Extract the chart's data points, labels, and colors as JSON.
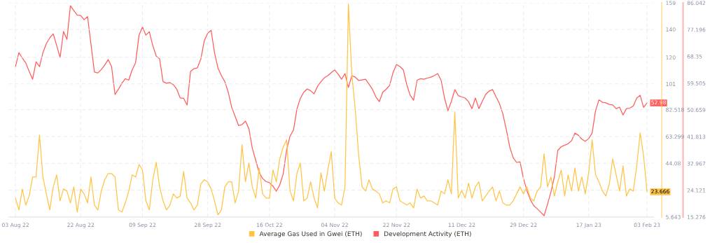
{
  "chart_data": {
    "type": "line",
    "x": [
      "2022-08-03",
      "2022-08-04",
      "2022-08-05",
      "2022-08-06",
      "2022-08-07",
      "2022-08-08",
      "2022-08-09",
      "2022-08-10",
      "2022-08-11",
      "2022-08-12",
      "2022-08-13",
      "2022-08-14",
      "2022-08-15",
      "2022-08-16",
      "2022-08-17",
      "2022-08-18",
      "2022-08-19",
      "2022-08-20",
      "2022-08-21",
      "2022-08-22",
      "2022-08-23",
      "2022-08-24",
      "2022-08-25",
      "2022-08-26",
      "2022-08-27",
      "2022-08-28",
      "2022-08-29",
      "2022-08-30",
      "2022-08-31",
      "2022-09-01",
      "2022-09-02",
      "2022-09-03",
      "2022-09-04",
      "2022-09-05",
      "2022-09-06",
      "2022-09-07",
      "2022-09-08",
      "2022-09-09",
      "2022-09-10",
      "2022-09-11",
      "2022-09-12",
      "2022-09-13",
      "2022-09-14",
      "2022-09-15",
      "2022-09-16",
      "2022-09-17",
      "2022-09-18",
      "2022-09-19",
      "2022-09-20",
      "2022-09-21",
      "2022-09-22",
      "2022-09-23",
      "2022-09-24",
      "2022-09-25",
      "2022-09-26",
      "2022-09-27",
      "2022-09-28",
      "2022-09-29",
      "2022-09-30",
      "2022-10-01",
      "2022-10-02",
      "2022-10-03",
      "2022-10-04",
      "2022-10-05",
      "2022-10-06",
      "2022-10-07",
      "2022-10-08",
      "2022-10-09",
      "2022-10-10",
      "2022-10-11",
      "2022-10-12",
      "2022-10-13",
      "2022-10-14",
      "2022-10-15",
      "2022-10-16",
      "2022-10-17",
      "2022-10-18",
      "2022-10-19",
      "2022-10-20",
      "2022-10-21",
      "2022-10-22",
      "2022-10-23",
      "2022-10-24",
      "2022-10-25",
      "2022-10-26",
      "2022-10-27",
      "2022-10-28",
      "2022-10-29",
      "2022-10-30",
      "2022-10-31",
      "2022-11-01",
      "2022-11-02",
      "2022-11-03",
      "2022-11-04",
      "2022-11-05",
      "2022-11-06",
      "2022-11-07",
      "2022-11-08",
      "2022-11-09",
      "2022-11-10",
      "2022-11-11",
      "2022-11-12",
      "2022-11-13",
      "2022-11-14",
      "2022-11-15",
      "2022-11-16",
      "2022-11-17",
      "2022-11-18",
      "2022-11-19",
      "2022-11-20",
      "2022-11-21",
      "2022-11-22",
      "2022-11-23",
      "2022-11-24",
      "2022-11-25",
      "2022-11-26",
      "2022-11-27",
      "2022-11-28",
      "2022-11-29",
      "2022-11-30",
      "2022-12-01",
      "2022-12-02",
      "2022-12-03",
      "2022-12-04",
      "2022-12-05",
      "2022-12-06",
      "2022-12-07",
      "2022-12-08",
      "2022-12-09",
      "2022-12-10",
      "2022-12-11",
      "2022-12-12",
      "2022-12-13",
      "2022-12-14",
      "2022-12-15",
      "2022-12-16",
      "2022-12-17",
      "2022-12-18",
      "2022-12-19",
      "2022-12-20",
      "2022-12-21",
      "2022-12-22",
      "2022-12-23",
      "2022-12-24",
      "2022-12-25",
      "2022-12-26",
      "2022-12-27",
      "2022-12-28",
      "2022-12-29",
      "2022-12-30",
      "2022-12-31",
      "2023-01-01",
      "2023-01-02",
      "2023-01-03",
      "2023-01-04",
      "2023-01-05",
      "2023-01-06",
      "2023-01-07",
      "2023-01-08",
      "2023-01-09",
      "2023-01-10",
      "2023-01-11",
      "2023-01-12",
      "2023-01-13",
      "2023-01-14",
      "2023-01-15",
      "2023-01-16",
      "2023-01-17",
      "2023-01-18",
      "2023-01-19",
      "2023-01-20",
      "2023-01-21",
      "2023-01-22",
      "2023-01-23",
      "2023-01-24",
      "2023-01-25",
      "2023-01-26",
      "2023-01-27",
      "2023-01-28",
      "2023-01-29",
      "2023-01-30",
      "2023-01-31",
      "2023-02-01",
      "2023-02-02",
      "2023-02-03"
    ],
    "series": [
      {
        "name": "Average Gas Used in Gwei (ETH)",
        "color": "#ffc445",
        "axis": "y",
        "values": [
          19.2,
          10.7,
          25.7,
          14.2,
          20.7,
          34.3,
          34.3,
          64.4,
          34.3,
          22.2,
          10.7,
          27.2,
          35.8,
          17.2,
          25.7,
          24.2,
          15.7,
          27.2,
          9.2,
          25.7,
          22.2,
          15.7,
          34.3,
          14.2,
          10.7,
          24.2,
          32.3,
          36.8,
          36.8,
          34.3,
          10.7,
          9.2,
          15.7,
          24.2,
          35.8,
          34.3,
          43.3,
          39.3,
          17.2,
          10.7,
          32.3,
          44.8,
          27.2,
          17.2,
          10.7,
          14.2,
          22.2,
          19.2,
          20.7,
          38.3,
          19.2,
          15.7,
          10.7,
          14.2,
          29.3,
          32.3,
          30.8,
          25.7,
          17.2,
          7.2,
          10.7,
          27.2,
          30.8,
          30.8,
          15.7,
          24.2,
          57.4,
          30.8,
          44.3,
          27.2,
          19.2,
          40.8,
          22.2,
          19.2,
          19.2,
          39.3,
          30.8,
          47.3,
          55.9,
          60.9,
          24.2,
          17.2,
          36.8,
          44.3,
          17.2,
          19.2,
          30.8,
          19.2,
          12.2,
          37.3,
          24.2,
          39.3,
          52.4,
          19.2,
          15.7,
          14.2,
          27.2,
          158.1,
          107.7,
          82.5,
          49.4,
          27.2,
          24.2,
          32.3,
          25.7,
          24.2,
          22.2,
          15.7,
          17.2,
          15.7,
          25.7,
          27.2,
          17.2,
          15.7,
          14.2,
          15.7,
          12.2,
          25.7,
          19.2,
          20.7,
          17.2,
          17.2,
          15.7,
          14.2,
          24.2,
          22.2,
          32.3,
          22.2,
          81.0,
          19.2,
          24.7,
          19.2,
          29.8,
          19.2,
          27.2,
          30.8,
          17.2,
          20.7,
          24.2,
          27.2,
          17.2,
          24.2,
          15.7,
          14.2,
          14.2,
          17.2,
          22.2,
          27.2,
          22.2,
          27.2,
          19.2,
          17.2,
          24.2,
          27.2,
          50.9,
          27.2,
          34.3,
          20.7,
          30.8,
          39.3,
          20.7,
          35.8,
          24.2,
          40.8,
          24.2,
          34.3,
          22.2,
          37.3,
          60.9,
          35.8,
          30.8,
          24.2,
          20.7,
          29.3,
          47.3,
          35.8,
          24.2,
          42.3,
          20.7,
          25.7,
          24.2,
          42.3,
          65.9,
          49.4,
          23.666
        ],
        "value_labels": [
          null,
          null,
          null,
          null,
          null,
          null,
          null,
          null,
          null,
          null,
          null,
          null,
          null,
          null,
          null,
          null,
          null,
          null,
          null,
          null,
          null,
          null,
          null,
          null,
          null,
          null,
          null,
          null,
          null,
          null,
          null,
          null,
          null,
          null,
          null,
          null,
          null,
          null,
          null,
          null,
          null,
          null,
          null,
          null,
          null,
          null,
          null,
          null,
          null,
          null,
          null,
          null,
          null,
          null,
          null,
          null,
          null,
          null,
          null,
          null,
          null,
          null,
          null,
          null,
          null,
          null,
          null,
          null,
          null,
          null,
          null,
          null,
          null,
          null,
          null,
          null,
          null,
          null,
          null,
          null,
          null,
          null,
          null,
          null,
          null,
          null,
          null,
          null,
          null,
          null,
          null,
          null,
          null,
          null,
          null,
          null,
          null,
          null,
          null,
          null,
          null,
          null,
          null,
          null,
          null,
          null,
          null,
          null,
          null,
          null,
          null,
          null,
          null,
          null,
          null,
          null,
          null,
          null,
          null,
          null,
          null,
          null,
          null,
          null,
          null,
          null,
          null,
          null,
          null,
          null,
          null,
          null,
          null,
          null,
          null,
          null,
          null,
          null,
          null,
          null,
          null,
          null,
          null,
          null,
          null,
          null,
          null,
          null,
          null,
          null,
          null,
          null,
          null,
          null,
          null,
          null,
          null,
          null,
          null,
          null,
          null,
          null,
          null,
          null,
          null,
          null,
          null,
          null,
          null,
          null,
          null,
          null,
          null,
          null,
          null,
          null,
          null,
          null,
          null,
          null,
          null,
          null,
          null,
          null,
          "23.666"
        ]
      },
      {
        "name": "Development Activity (ETH)",
        "color": "#ff5c5c",
        "axis": "y2",
        "values": [
          65.0,
          69.6,
          67.8,
          66.2,
          63.4,
          60.8,
          66.6,
          65.0,
          69.6,
          72.6,
          74.5,
          75.8,
          72.0,
          68.0,
          76.6,
          74.0,
          85.1,
          83.5,
          82.0,
          81.9,
          80.5,
          81.5,
          72.4,
          63.2,
          62.9,
          64.0,
          65.5,
          67.3,
          65.0,
          55.8,
          57.5,
          59.5,
          61.0,
          60.5,
          63.9,
          66.3,
          75.4,
          78.1,
          75.4,
          76.5,
          72.0,
          68.5,
          67.5,
          60.0,
          59.5,
          59.7,
          59.0,
          57.5,
          54.6,
          54.5,
          52.3,
          63.4,
          64.3,
          64.6,
          67.5,
          73.5,
          76.0,
          77.0,
          69.5,
          64.5,
          62.0,
          60.0,
          56.5,
          51.5,
          48.5,
          45.5,
          45.8,
          47.0,
          44.5,
          38.0,
          34.0,
          30.0,
          28.0,
          27.0,
          26.6,
          25.5,
          23.8,
          25.9,
          29.5,
          37.5,
          42.0,
          44.0,
          51.0,
          54.5,
          56.5,
          57.6,
          57.0,
          56.0,
          58.5,
          60.0,
          61.3,
          62.0,
          63.0,
          63.9,
          62.5,
          60.8,
          62.7,
          58.1,
          62.0,
          61.5,
          60.4,
          60.6,
          60.8,
          59.2,
          57.5,
          55.0,
          53.4,
          56.5,
          57.5,
          58.8,
          63.0,
          65.7,
          65.0,
          63.9,
          59.0,
          55.5,
          53.9,
          60.5,
          61.0,
          60.8,
          61.2,
          61.5,
          62.0,
          62.7,
          60.5,
          54.6,
          50.4,
          53.5,
          57.4,
          55.4,
          55.0,
          54.6,
          53.4,
          51.1,
          54.6,
          51.1,
          53.5,
          55.8,
          56.9,
          57.4,
          55.0,
          52.8,
          49.3,
          44.2,
          38.4,
          34.9,
          33.3,
          33.5,
          28.0,
          24.0,
          21.0,
          19.0,
          18.0,
          16.9,
          15.7,
          19.5,
          23.5,
          28.5,
          37.3,
          38.5,
          39.0,
          39.5,
          40.5,
          43.0,
          42.3,
          41.0,
          40.3,
          41.2,
          43.0,
          50.4,
          54.0,
          53.2,
          53.0,
          52.5,
          52.3,
          51.1,
          51.6,
          49.0,
          51.1,
          51.3,
          52.0,
          54.6,
          55.5,
          51.5,
          52.98
        ],
        "value_labels": [
          null,
          null,
          null,
          null,
          null,
          null,
          null,
          null,
          null,
          null,
          null,
          null,
          null,
          null,
          null,
          null,
          null,
          null,
          null,
          null,
          null,
          null,
          null,
          null,
          null,
          null,
          null,
          null,
          null,
          null,
          null,
          null,
          null,
          null,
          null,
          null,
          null,
          null,
          null,
          null,
          null,
          null,
          null,
          null,
          null,
          null,
          null,
          null,
          null,
          null,
          null,
          null,
          null,
          null,
          null,
          null,
          null,
          null,
          null,
          null,
          null,
          null,
          null,
          null,
          null,
          null,
          null,
          null,
          null,
          null,
          null,
          null,
          null,
          null,
          null,
          null,
          null,
          null,
          null,
          null,
          null,
          null,
          null,
          null,
          null,
          null,
          null,
          null,
          null,
          null,
          null,
          null,
          null,
          null,
          null,
          null,
          null,
          null,
          null,
          null,
          null,
          null,
          null,
          null,
          null,
          null,
          null,
          null,
          null,
          null,
          null,
          null,
          null,
          null,
          null,
          null,
          null,
          null,
          null,
          null,
          null,
          null,
          null,
          null,
          null,
          null,
          null,
          null,
          null,
          null,
          null,
          null,
          null,
          null,
          null,
          null,
          null,
          null,
          null,
          null,
          null,
          null,
          null,
          null,
          null,
          null,
          null,
          null,
          null,
          null,
          null,
          null,
          null,
          null,
          null,
          null,
          null,
          null,
          null,
          null,
          null,
          null,
          null,
          null,
          null,
          null,
          null,
          null,
          null,
          null,
          null,
          null,
          null,
          null,
          null,
          null,
          null,
          null,
          null,
          null,
          null,
          null,
          null,
          null,
          "52.98"
        ]
      }
    ],
    "xlim": [
      "2022-08-01",
      "2023-02-05"
    ],
    "xticks": [
      {
        "value": "2022-08-03",
        "label": "03 Aug 22"
      },
      {
        "value": "2022-08-22",
        "label": "22 Aug 22"
      },
      {
        "value": "2022-09-09",
        "label": "09 Sep 22"
      },
      {
        "value": "2022-09-28",
        "label": "28 Sep 22"
      },
      {
        "value": "2022-10-16",
        "label": "16 Oct 22"
      },
      {
        "value": "2022-11-04",
        "label": "04 Nov 22"
      },
      {
        "value": "2022-11-22",
        "label": "22 Nov 22"
      },
      {
        "value": "2022-12-11",
        "label": "11 Dec 22"
      },
      {
        "value": "2022-12-29",
        "label": "29 Dec 22"
      },
      {
        "value": "2023-01-17",
        "label": "17 Jan 23"
      },
      {
        "value": "2023-02-03",
        "label": "03 Feb 23"
      }
    ],
    "ylim": [
      5.643,
      159
    ],
    "yticks": [
      5.643,
      {
        "value": 24.862,
        "label": null
      },
      44.08,
      63.299,
      82.518,
      101,
      120,
      140,
      159
    ],
    "y2lim": [
      15.276,
      86.042
    ],
    "y2ticks": [
      15.276,
      24.121,
      32.967,
      41.813,
      50.659,
      59.505,
      68.35,
      77.196,
      86.042
    ],
    "grid": true,
    "legend": "bottom"
  }
}
